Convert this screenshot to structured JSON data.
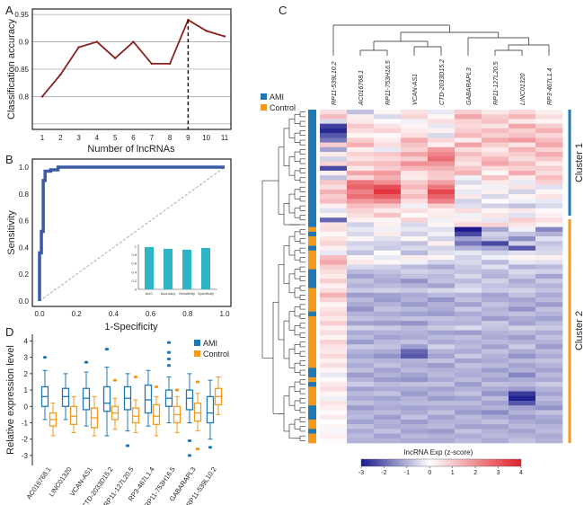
{
  "panel_letters": {
    "a": "A",
    "b": "B",
    "c": "C",
    "d": "D"
  },
  "colors": {
    "ami": "#1f78b4",
    "control": "#f39a1c",
    "line_a": "#8b2020",
    "roc": "#3a5aa8",
    "inset_bar": "#2bb5c6",
    "heat_low": "#1a1a8c",
    "heat_high": "#e0202a"
  },
  "chart_data": [
    {
      "id": "A",
      "type": "line",
      "title": "",
      "xlabel": "Number of lncRNAs",
      "ylabel": "Classification accuracy",
      "x": [
        1,
        2,
        3,
        4,
        5,
        6,
        7,
        8,
        9,
        10,
        11
      ],
      "y": [
        0.8,
        0.84,
        0.89,
        0.9,
        0.87,
        0.9,
        0.86,
        0.86,
        0.94,
        0.92,
        0.91
      ],
      "xticks": [
        "1",
        "2",
        "3",
        "4",
        "5",
        "6",
        "7",
        "8",
        "9",
        "10",
        "11"
      ],
      "yticks": [
        "0.8",
        "0.85",
        "0.9",
        "0.95"
      ],
      "ylim": [
        0.74,
        0.96
      ],
      "grid": true,
      "marker_line_x": 9
    },
    {
      "id": "B",
      "type": "line",
      "xlabel": "1-Specificity",
      "ylabel": "Sensitivity",
      "xticks": [
        "0.0",
        "0.2",
        "0.4",
        "0.6",
        "0.8",
        "1.0"
      ],
      "yticks": [
        "0.0",
        "0.2",
        "0.4",
        "0.6",
        "0.8",
        "1.0"
      ],
      "roc_x": [
        0,
        0,
        0.01,
        0.01,
        0.02,
        0.02,
        0.03,
        0.03,
        0.06,
        0.06,
        0.1,
        0.1,
        1.0
      ],
      "roc_y": [
        0,
        0.36,
        0.36,
        0.52,
        0.52,
        0.9,
        0.9,
        0.97,
        0.97,
        0.98,
        0.98,
        1.0,
        1.0
      ],
      "inset": {
        "type": "bar",
        "categories": [
          "AUC",
          "Accuracy",
          "Sensitivity",
          "Specificity"
        ],
        "values": [
          0.98,
          0.94,
          0.92,
          0.96
        ],
        "yticks": [
          "0",
          "0.2",
          "0.4",
          "0.6",
          "0.8",
          "1"
        ]
      }
    },
    {
      "id": "C",
      "type": "heatmap",
      "columns": [
        "RP11-539L10.2",
        "AC016768.1",
        "RP11-753H16.5",
        "VCAN-AS1",
        "CTD-2033D15.2",
        "GABARAPL3",
        "RP11-127L20.5",
        "LINC01320",
        "RP3-467L1.4"
      ],
      "legend": [
        {
          "label": "AMI"
        },
        {
          "label": "Control"
        }
      ],
      "cluster_labels": [
        "Cluster 1",
        "Cluster 2"
      ],
      "colorbar_title": "lncRNA Exp (z-score)",
      "colorbar_ticks": [
        "-3",
        "-2",
        "-1",
        "0",
        "1",
        "2",
        "3",
        "4"
      ],
      "range": [
        -3,
        4
      ],
      "row_groups": "AAAAAAAAAAAAAAAAAAAAAAAAACACCACCCCAAAACCCCCACCCCCCCCCCCAACACCCCAAACCACC",
      "rows": [
        [
          0.6,
          -0.8,
          0.2,
          0.5,
          -0.3,
          0.9,
          0.4,
          0.7,
          0.3
        ],
        [
          1.2,
          0.3,
          -0.5,
          0.8,
          0.2,
          1.6,
          0.9,
          1.3,
          0.6
        ],
        [
          -0.5,
          0.4,
          0.1,
          -0.2,
          0.6,
          0.8,
          1.1,
          0.4,
          0.2
        ],
        [
          -2.5,
          1.0,
          0.5,
          0.2,
          -0.3,
          0.7,
          0.5,
          1.6,
          0.9
        ],
        [
          -2.8,
          0.6,
          0.8,
          0.4,
          0.3,
          0.9,
          1.2,
          0.8,
          1.4
        ],
        [
          -2.2,
          0.2,
          0.1,
          0.6,
          -0.5,
          1.3,
          0.8,
          1.1,
          0.7
        ],
        [
          -1.8,
          0.9,
          0.4,
          1.5,
          0.7,
          0.3,
          1.5,
          1.8,
          1.2
        ],
        [
          0.9,
          1.4,
          0.6,
          1.1,
          0.3,
          1.7,
          0.9,
          0.5,
          1.6
        ],
        [
          -1.2,
          0.3,
          -0.3,
          0.8,
          1.8,
          0.6,
          0.4,
          1.4,
          0.8
        ],
        [
          0.4,
          0.8,
          1.0,
          1.6,
          2.2,
          1.2,
          0.7,
          0.9,
          1.5
        ],
        [
          -0.6,
          0.5,
          0.7,
          0.9,
          2.6,
          0.8,
          1.3,
          0.6,
          1.0
        ],
        [
          0.8,
          1.1,
          1.2,
          2.0,
          1.9,
          0.5,
          1.6,
          1.2,
          0.4
        ],
        [
          -2.4,
          0.4,
          0.9,
          1.3,
          1.4,
          1.0,
          0.6,
          0.8,
          0.9
        ],
        [
          0.3,
          1.6,
          1.8,
          0.5,
          1.0,
          1.4,
          0.2,
          1.5,
          0.6
        ],
        [
          -0.8,
          0.7,
          1.4,
          0.4,
          0.9,
          -0.2,
          1.1,
          0.3,
          1.2
        ],
        [
          1.0,
          2.5,
          2.0,
          0.9,
          1.7,
          -0.5,
          0.4,
          -0.3,
          0.8
        ],
        [
          0.6,
          2.8,
          3.2,
          1.3,
          2.4,
          0.2,
          -0.2,
          0.5,
          -0.4
        ],
        [
          1.4,
          2.2,
          3.6,
          0.8,
          3.3,
          -0.3,
          0.3,
          -0.6,
          0.2
        ],
        [
          0.9,
          2.6,
          2.9,
          1.2,
          2.8,
          0.4,
          -0.5,
          0.2,
          0.5
        ],
        [
          1.2,
          1.8,
          2.1,
          0.6,
          2.2,
          -0.6,
          0.1,
          -0.2,
          -0.3
        ],
        [
          0.3,
          1.2,
          1.0,
          -0.2,
          0.9,
          -0.4,
          -0.6,
          -0.8,
          -0.5
        ],
        [
          -0.4,
          0.8,
          0.4,
          0.6,
          0.3,
          0.6,
          0.2,
          0.4,
          0.1
        ],
        [
          0.2,
          0.6,
          1.1,
          0.1,
          0.4,
          -0.2,
          0.5,
          -0.4,
          0.3
        ],
        [
          -2.0,
          0.3,
          0.2,
          0.8,
          -0.2,
          0.3,
          -0.3,
          0.9,
          0.6
        ],
        [
          0.5,
          -0.6,
          0.3,
          -0.5,
          0.2,
          0.7,
          0.8,
          0.5,
          0.2
        ],
        [
          0.6,
          -0.3,
          -0.2,
          -0.3,
          -0.4,
          -3.0,
          -1.2,
          -0.2,
          -1.6
        ],
        [
          0.2,
          -0.5,
          0.4,
          -0.6,
          -0.2,
          -2.4,
          -0.6,
          -0.8,
          -1.0
        ],
        [
          0.5,
          0.2,
          -0.4,
          0.2,
          -0.6,
          -1.2,
          -0.8,
          -1.5,
          -0.4
        ],
        [
          0.8,
          -0.6,
          -0.6,
          -0.8,
          0.3,
          -1.8,
          -2.4,
          -0.6,
          -0.8
        ],
        [
          0.3,
          -0.4,
          -0.7,
          -0.5,
          -0.6,
          -1.0,
          -1.2,
          -2.2,
          -0.6
        ],
        [
          -0.3,
          -0.8,
          0.1,
          -0.9,
          -0.4,
          -0.3,
          -0.6,
          -0.4,
          -0.5
        ],
        [
          1.2,
          0.2,
          -0.3,
          0.4,
          0.2,
          -0.6,
          -0.2,
          0.2,
          0.3
        ],
        [
          1.6,
          0.4,
          0.2,
          -0.2,
          -0.6,
          -0.5,
          -0.9,
          -0.3,
          -0.4
        ],
        [
          0.9,
          -0.5,
          -0.6,
          -0.9,
          -1.1,
          -0.7,
          -0.4,
          -1.0,
          -0.9
        ],
        [
          0.6,
          -0.9,
          -0.8,
          -0.6,
          -0.7,
          -0.8,
          -0.9,
          -0.5,
          -0.6
        ],
        [
          0.4,
          -1.2,
          -1.0,
          -0.8,
          -0.9,
          -0.5,
          -1.0,
          -0.7,
          -1.2
        ],
        [
          0.9,
          -0.8,
          -1.1,
          -1.4,
          -0.8,
          -0.9,
          -0.6,
          -1.1,
          -0.7
        ],
        [
          0.3,
          -1.0,
          -0.9,
          -1.0,
          -1.2,
          -0.6,
          -0.8,
          -0.9,
          -1.0
        ],
        [
          0.6,
          -0.7,
          -0.6,
          -0.7,
          -0.5,
          -0.4,
          -0.7,
          -0.6,
          -0.8
        ],
        [
          1.4,
          -1.3,
          -1.2,
          -1.1,
          -0.9,
          -1.0,
          -1.2,
          -0.8,
          -1.1
        ],
        [
          0.8,
          -0.9,
          -1.3,
          -1.0,
          -1.4,
          -0.8,
          -1.1,
          -1.2,
          -0.9
        ],
        [
          0.2,
          -1.1,
          -1.0,
          -1.3,
          -1.0,
          -1.2,
          -0.8,
          -1.0,
          -1.3
        ],
        [
          0.5,
          -1.4,
          -0.8,
          -0.9,
          -1.1,
          -0.7,
          -1.0,
          -1.4,
          -0.8
        ],
        [
          0.7,
          -1.0,
          -1.1,
          -1.2,
          -1.3,
          -1.1,
          -0.9,
          -0.8,
          -1.0
        ],
        [
          0.4,
          -0.8,
          -0.9,
          -0.8,
          -0.8,
          -0.9,
          -1.3,
          -1.1,
          -1.2
        ],
        [
          0.9,
          -1.2,
          -1.3,
          -1.4,
          -1.0,
          -1.0,
          -0.7,
          -1.2,
          -0.9
        ],
        [
          0.3,
          -0.6,
          -0.7,
          -0.9,
          -0.7,
          -0.5,
          -0.8,
          -0.6,
          -0.7
        ],
        [
          0.6,
          -1.1,
          -1.0,
          -1.0,
          -1.2,
          -1.3,
          -1.0,
          -0.9,
          -1.1
        ],
        [
          0.2,
          -0.9,
          -1.2,
          -1.1,
          -0.9,
          -0.8,
          -1.1,
          -1.3,
          -0.8
        ],
        [
          0.8,
          -1.3,
          -0.9,
          -0.8,
          -1.1,
          -1.0,
          -0.9,
          -1.0,
          -1.0
        ],
        [
          0.5,
          -0.7,
          -0.8,
          -1.3,
          -0.6,
          -0.9,
          -1.2,
          -0.7,
          -1.3
        ],
        [
          0.4,
          -1.0,
          -1.1,
          -2.0,
          -1.0,
          -1.1,
          -0.8,
          -1.1,
          -0.9
        ],
        [
          0.7,
          -1.2,
          -1.4,
          -2.2,
          -1.2,
          -0.7,
          -1.0,
          -1.4,
          -1.1
        ],
        [
          0.3,
          -0.9,
          -1.0,
          -1.0,
          -0.8,
          -1.2,
          -1.1,
          -0.9,
          -0.8
        ],
        [
          0.6,
          -1.1,
          -0.8,
          -1.1,
          -1.3,
          -0.8,
          -0.9,
          -1.2,
          -1.0
        ],
        [
          0.2,
          -0.8,
          -1.2,
          -0.9,
          -1.0,
          -1.0,
          -1.3,
          -1.0,
          -1.2
        ],
        [
          -0.3,
          -1.3,
          -1.0,
          -1.2,
          -0.9,
          -1.1,
          -1.0,
          -1.6,
          -0.9
        ],
        [
          0.1,
          -1.0,
          -1.3,
          -1.4,
          -1.1,
          -0.9,
          -1.2,
          -1.1,
          -1.1
        ],
        [
          0.4,
          -0.7,
          -0.9,
          -0.8,
          -0.8,
          -1.3,
          -0.8,
          -0.9,
          -0.7
        ],
        [
          0.6,
          -1.2,
          -1.1,
          -1.1,
          -1.2,
          -1.0,
          -1.1,
          -1.3,
          -1.0
        ],
        [
          0.2,
          -0.9,
          -0.8,
          -1.3,
          -1.0,
          -0.8,
          -1.4,
          -2.6,
          -1.2
        ],
        [
          -0.2,
          -1.1,
          -1.2,
          -1.0,
          -1.3,
          -1.2,
          -0.9,
          -2.9,
          -0.9
        ],
        [
          0.5,
          -0.8,
          -1.0,
          -0.9,
          -0.9,
          -0.9,
          -1.2,
          -2.2,
          -1.1
        ],
        [
          0.3,
          -1.3,
          -1.1,
          -1.2,
          -1.1,
          -1.1,
          -1.0,
          -1.2,
          -1.4
        ],
        [
          0.1,
          -1.0,
          -0.9,
          -1.1,
          -0.8,
          -1.3,
          -1.5,
          -1.0,
          -0.8
        ],
        [
          0.4,
          -0.9,
          -1.3,
          -0.8,
          -1.2,
          -0.9,
          -1.1,
          -1.3,
          -1.1
        ],
        [
          0.0,
          -1.2,
          -1.0,
          -1.3,
          -1.0,
          -1.0,
          -0.8,
          -1.1,
          -1.2
        ],
        [
          0.2,
          -0.8,
          -1.1,
          -1.0,
          -0.9,
          -1.2,
          -1.2,
          -0.9,
          -1.0
        ],
        [
          -0.1,
          -1.1,
          -0.8,
          -1.2,
          -1.3,
          -0.8,
          -1.0,
          -1.2,
          -0.9
        ],
        [
          0.3,
          -0.9,
          -1.2,
          -0.9,
          -1.0,
          -1.1,
          -0.9,
          -1.0,
          -1.1
        ],
        [
          0.1,
          -1.0,
          -1.0,
          -1.1,
          -1.1,
          -0.9,
          -1.1,
          -0.8,
          -1.0
        ]
      ]
    },
    {
      "id": "D",
      "type": "box",
      "ylabel": "Relative expression level",
      "yticks": [
        "-3",
        "-2",
        "-1",
        "0",
        "1",
        "2",
        "3",
        "4"
      ],
      "ylim": [
        -3.5,
        4.3
      ],
      "legend": [
        {
          "label": "AMI"
        },
        {
          "label": "Control"
        }
      ],
      "categories": [
        "AC016768.1",
        "LINC01320",
        "VCAN-AS1",
        "CTD-2033D15.2",
        "RP11-127L20.5",
        "RP3-467L1.4",
        "RP11-753H16.5",
        "GABARAPL3",
        "RP11-539L10.2"
      ],
      "series": [
        {
          "name": "AMI",
          "boxes": [
            {
              "q1": 0.0,
              "median": 0.6,
              "q3": 1.2,
              "low": -0.8,
              "high": 2.2,
              "outliers": [
                3.0
              ]
            },
            {
              "q1": 0.0,
              "median": 0.6,
              "q3": 1.1,
              "low": -0.8,
              "high": 2.0,
              "outliers": []
            },
            {
              "q1": -0.2,
              "median": 0.5,
              "q3": 1.1,
              "low": -1.2,
              "high": 2.1,
              "outliers": [
                2.7
              ]
            },
            {
              "q1": -0.3,
              "median": 0.2,
              "q3": 1.2,
              "low": -1.8,
              "high": 2.4,
              "outliers": [
                3.5
              ]
            },
            {
              "q1": -0.2,
              "median": 0.5,
              "q3": 1.2,
              "low": -1.5,
              "high": 2.0,
              "outliers": [
                -2.4
              ]
            },
            {
              "q1": -0.4,
              "median": 0.4,
              "q3": 1.3,
              "low": -1.2,
              "high": 2.2,
              "outliers": []
            },
            {
              "q1": 0.0,
              "median": 0.5,
              "q3": 1.0,
              "low": -1.0,
              "high": 1.8,
              "outliers": [
                2.5,
                2.9,
                3.3,
                3.9
              ]
            },
            {
              "q1": -0.2,
              "median": 0.5,
              "q3": 1.0,
              "low": -1.0,
              "high": 2.0,
              "outliers": [
                -2.1,
                -3.0
              ]
            },
            {
              "q1": -1.0,
              "median": -0.4,
              "q3": 0.6,
              "low": -2.0,
              "high": 1.6,
              "outliers": [
                -2.5
              ]
            }
          ]
        },
        {
          "name": "Control",
          "boxes": [
            {
              "q1": -1.2,
              "median": -0.8,
              "q3": -0.4,
              "low": -1.8,
              "high": 0.2,
              "outliers": []
            },
            {
              "q1": -1.1,
              "median": -0.6,
              "q3": 0.0,
              "low": -1.6,
              "high": 0.6,
              "outliers": []
            },
            {
              "q1": -1.3,
              "median": -0.7,
              "q3": -0.1,
              "low": -1.8,
              "high": 0.6,
              "outliers": []
            },
            {
              "q1": -0.8,
              "median": -0.4,
              "q3": 0.0,
              "low": -1.4,
              "high": 0.5,
              "outliers": [
                1.6
              ]
            },
            {
              "q1": -1.0,
              "median": -0.6,
              "q3": -0.1,
              "low": -1.6,
              "high": 0.4,
              "outliers": [
                1.8
              ]
            },
            {
              "q1": -1.1,
              "median": -0.6,
              "q3": 0.1,
              "low": -1.8,
              "high": 0.6,
              "outliers": [
                1.2
              ]
            },
            {
              "q1": -1.0,
              "median": -0.5,
              "q3": 0.0,
              "low": -1.6,
              "high": 0.6,
              "outliers": [
                1.0
              ]
            },
            {
              "q1": -0.9,
              "median": -0.4,
              "q3": 0.2,
              "low": -1.5,
              "high": 0.8,
              "outliers": [
                1.5,
                -2.6
              ]
            },
            {
              "q1": 0.1,
              "median": 0.6,
              "q3": 1.1,
              "low": -0.5,
              "high": 1.8,
              "outliers": []
            }
          ]
        }
      ]
    }
  ]
}
